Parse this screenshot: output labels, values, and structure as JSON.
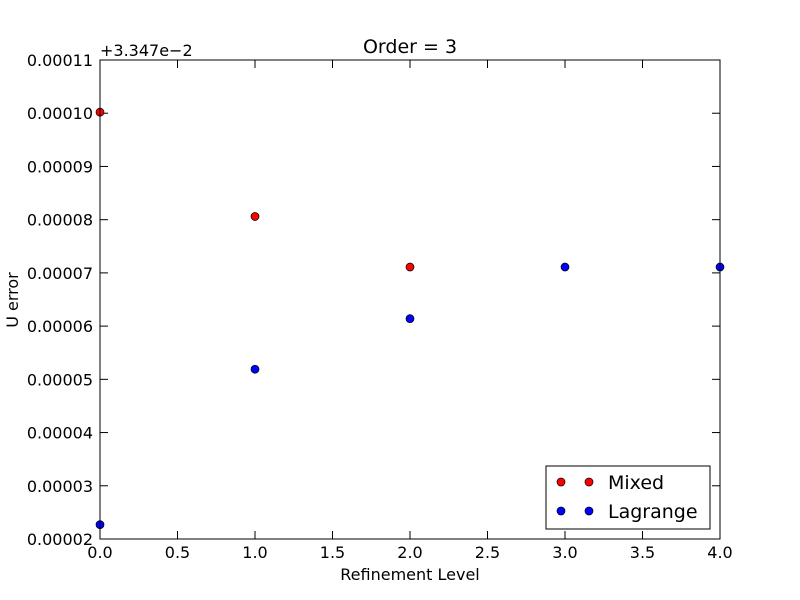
{
  "chart_data": {
    "type": "scatter",
    "title": "Order = 3",
    "xlabel": "Refinement Level",
    "ylabel": "U error",
    "xlim": [
      0,
      4
    ],
    "ylim": [
      2e-05,
      0.00011
    ],
    "y_offset_text": "+3.347e−2",
    "x_ticks": [
      "0.0",
      "0.5",
      "1.0",
      "1.5",
      "2.0",
      "2.5",
      "3.0",
      "3.5",
      "4.0"
    ],
    "y_ticks": [
      "0.00002",
      "0.00003",
      "0.00004",
      "0.00005",
      "0.00006",
      "0.00007",
      "0.00008",
      "0.00009",
      "0.00010",
      "0.00011"
    ],
    "grid": false,
    "legend_position": "lower-right",
    "series": [
      {
        "name": "Mixed",
        "color": "#ff0000",
        "x": [
          0,
          1,
          2
        ],
        "y": [
          0.0001002,
          8.06e-05,
          7.11e-05
        ]
      },
      {
        "name": "Lagrange",
        "color": "#0000ff",
        "x": [
          0,
          1,
          2,
          3,
          4
        ],
        "y": [
          2.27e-05,
          5.19e-05,
          6.14e-05,
          7.11e-05,
          7.11e-05
        ]
      }
    ]
  }
}
